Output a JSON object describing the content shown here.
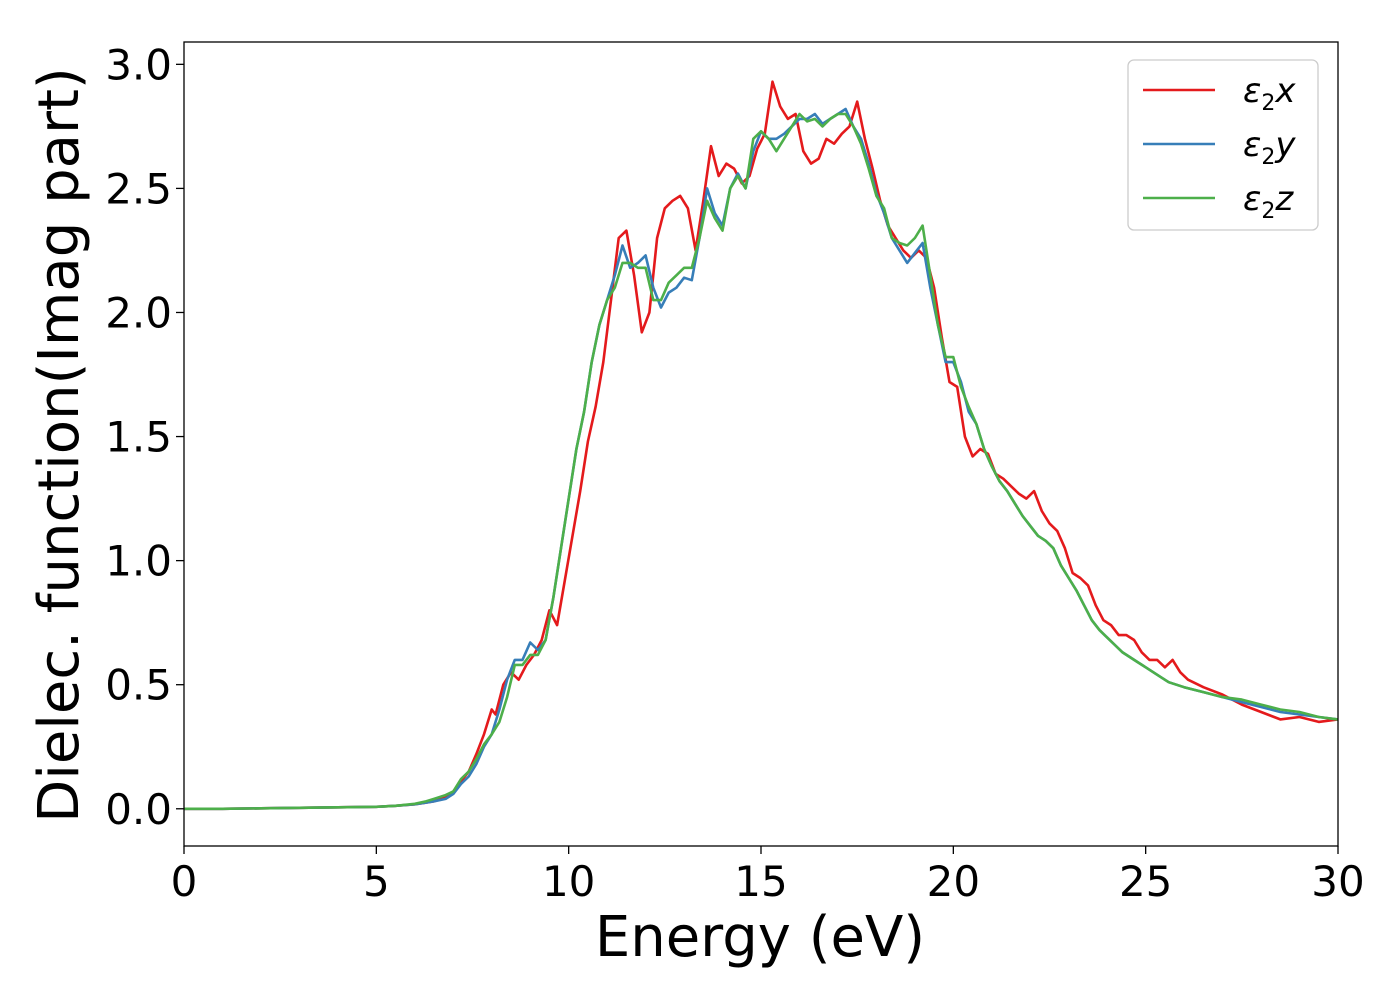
{
  "chart_data": {
    "type": "line",
    "xlabel": "Energy (eV)",
    "ylabel": "Dielec. function(Imag part)",
    "xlim": [
      0,
      30
    ],
    "ylim": [
      -0.15,
      3.09
    ],
    "xticks": [
      0,
      5,
      10,
      15,
      20,
      25,
      30
    ],
    "xtick_labels": [
      "0",
      "5",
      "10",
      "15",
      "20",
      "25",
      "30"
    ],
    "yticks": [
      0.0,
      0.5,
      1.0,
      1.5,
      2.0,
      2.5,
      3.0
    ],
    "ytick_labels": [
      "0.0",
      "0.5",
      "1.0",
      "1.5",
      "2.0",
      "2.5",
      "3.0"
    ],
    "grid": false,
    "legend_position": "top-right",
    "series": [
      {
        "name": "ε2x",
        "name_base": "ε",
        "name_sub": "2",
        "name_suffix": "x",
        "color": "#e41a1c",
        "x": [
          0,
          1,
          2,
          3,
          4,
          5,
          5.5,
          6,
          6.3,
          6.5,
          6.8,
          7.0,
          7.2,
          7.4,
          7.6,
          7.8,
          8.0,
          8.1,
          8.3,
          8.5,
          8.7,
          8.9,
          9.1,
          9.3,
          9.5,
          9.7,
          9.9,
          10.1,
          10.3,
          10.5,
          10.7,
          10.9,
          11.1,
          11.3,
          11.5,
          11.7,
          11.9,
          12.1,
          12.3,
          12.5,
          12.7,
          12.9,
          13.1,
          13.3,
          13.5,
          13.7,
          13.9,
          14.1,
          14.3,
          14.5,
          14.7,
          14.9,
          15.1,
          15.3,
          15.5,
          15.7,
          15.9,
          16.1,
          16.3,
          16.5,
          16.7,
          16.9,
          17.1,
          17.3,
          17.5,
          17.7,
          17.9,
          18.1,
          18.3,
          18.5,
          18.7,
          18.9,
          19.1,
          19.3,
          19.5,
          19.7,
          19.9,
          20.1,
          20.3,
          20.5,
          20.7,
          20.9,
          21.1,
          21.3,
          21.5,
          21.7,
          21.9,
          22.1,
          22.3,
          22.5,
          22.7,
          22.9,
          23.1,
          23.3,
          23.5,
          23.7,
          23.9,
          24.1,
          24.3,
          24.5,
          24.7,
          24.9,
          25.1,
          25.3,
          25.5,
          25.7,
          25.9,
          26.1,
          26.5,
          27.0,
          27.5,
          28.0,
          28.5,
          29.0,
          29.5,
          30.0
        ],
        "y": [
          0.0,
          0.0,
          0.002,
          0.004,
          0.006,
          0.008,
          0.012,
          0.018,
          0.025,
          0.03,
          0.045,
          0.07,
          0.11,
          0.15,
          0.22,
          0.3,
          0.4,
          0.38,
          0.5,
          0.55,
          0.52,
          0.58,
          0.62,
          0.68,
          0.8,
          0.74,
          0.92,
          1.1,
          1.28,
          1.48,
          1.62,
          1.8,
          2.05,
          2.3,
          2.33,
          2.15,
          1.92,
          2.0,
          2.3,
          2.42,
          2.45,
          2.47,
          2.42,
          2.25,
          2.45,
          2.67,
          2.55,
          2.6,
          2.58,
          2.52,
          2.55,
          2.66,
          2.72,
          2.93,
          2.83,
          2.78,
          2.8,
          2.65,
          2.6,
          2.62,
          2.7,
          2.68,
          2.72,
          2.75,
          2.85,
          2.7,
          2.58,
          2.45,
          2.35,
          2.3,
          2.25,
          2.22,
          2.25,
          2.22,
          2.1,
          1.9,
          1.72,
          1.7,
          1.5,
          1.42,
          1.45,
          1.43,
          1.35,
          1.33,
          1.3,
          1.27,
          1.25,
          1.28,
          1.2,
          1.15,
          1.12,
          1.05,
          0.95,
          0.93,
          0.9,
          0.82,
          0.76,
          0.74,
          0.7,
          0.7,
          0.68,
          0.63,
          0.6,
          0.6,
          0.57,
          0.6,
          0.55,
          0.52,
          0.49,
          0.46,
          0.42,
          0.39,
          0.36,
          0.37,
          0.35,
          0.36
        ]
      },
      {
        "name": "ε2y",
        "name_base": "ε",
        "name_sub": "2",
        "name_suffix": "y",
        "color": "#377eb8",
        "x": [
          0,
          1,
          2,
          3,
          4,
          5,
          5.5,
          6,
          6.3,
          6.5,
          6.8,
          7.0,
          7.2,
          7.4,
          7.6,
          7.8,
          8.0,
          8.2,
          8.4,
          8.6,
          8.8,
          9.0,
          9.2,
          9.4,
          9.6,
          9.8,
          10.0,
          10.2,
          10.4,
          10.6,
          10.8,
          11.0,
          11.2,
          11.4,
          11.6,
          11.8,
          12.0,
          12.2,
          12.4,
          12.6,
          12.8,
          13.0,
          13.2,
          13.4,
          13.6,
          13.8,
          14.0,
          14.2,
          14.4,
          14.6,
          14.8,
          15.0,
          15.2,
          15.4,
          15.6,
          15.8,
          16.0,
          16.2,
          16.4,
          16.6,
          16.8,
          17.0,
          17.2,
          17.4,
          17.6,
          17.8,
          18.0,
          18.2,
          18.4,
          18.6,
          18.8,
          19.0,
          19.2,
          19.4,
          19.6,
          19.8,
          20.0,
          20.2,
          20.4,
          20.6,
          20.8,
          21.0,
          21.2,
          21.4,
          21.6,
          21.8,
          22.0,
          22.2,
          22.4,
          22.6,
          22.8,
          23.0,
          23.2,
          23.4,
          23.6,
          23.8,
          24.0,
          24.2,
          24.4,
          24.6,
          24.8,
          25.0,
          25.2,
          25.4,
          25.6,
          25.8,
          26.0,
          26.5,
          27.0,
          27.5,
          28.0,
          28.5,
          29.0,
          29.5,
          30.0
        ],
        "y": [
          0.0,
          0.0,
          0.002,
          0.004,
          0.006,
          0.008,
          0.012,
          0.018,
          0.025,
          0.03,
          0.04,
          0.06,
          0.1,
          0.13,
          0.18,
          0.25,
          0.3,
          0.4,
          0.52,
          0.6,
          0.6,
          0.67,
          0.64,
          0.68,
          0.85,
          1.05,
          1.25,
          1.45,
          1.6,
          1.8,
          1.95,
          2.05,
          2.15,
          2.27,
          2.18,
          2.2,
          2.23,
          2.1,
          2.02,
          2.08,
          2.1,
          2.14,
          2.13,
          2.3,
          2.5,
          2.4,
          2.35,
          2.5,
          2.56,
          2.5,
          2.65,
          2.73,
          2.7,
          2.7,
          2.72,
          2.75,
          2.78,
          2.78,
          2.8,
          2.76,
          2.78,
          2.8,
          2.82,
          2.75,
          2.7,
          2.6,
          2.48,
          2.4,
          2.3,
          2.25,
          2.2,
          2.24,
          2.28,
          2.1,
          1.95,
          1.8,
          1.8,
          1.72,
          1.6,
          1.55,
          1.45,
          1.38,
          1.32,
          1.28,
          1.23,
          1.18,
          1.14,
          1.1,
          1.08,
          1.05,
          0.98,
          0.93,
          0.88,
          0.82,
          0.76,
          0.72,
          0.69,
          0.66,
          0.63,
          0.61,
          0.59,
          0.57,
          0.55,
          0.53,
          0.51,
          0.5,
          0.49,
          0.47,
          0.45,
          0.43,
          0.41,
          0.39,
          0.38,
          0.37,
          0.36
        ]
      },
      {
        "name": "ε2z",
        "name_base": "ε",
        "name_sub": "2",
        "name_suffix": "z",
        "color": "#4daf4a",
        "x": [
          0,
          1,
          2,
          3,
          4,
          5,
          5.5,
          6,
          6.3,
          6.5,
          6.8,
          7.0,
          7.2,
          7.4,
          7.6,
          7.8,
          8.0,
          8.2,
          8.4,
          8.6,
          8.8,
          9.0,
          9.2,
          9.4,
          9.6,
          9.8,
          10.0,
          10.2,
          10.4,
          10.6,
          10.8,
          11.0,
          11.2,
          11.4,
          11.6,
          11.8,
          12.0,
          12.2,
          12.4,
          12.6,
          12.8,
          13.0,
          13.2,
          13.4,
          13.6,
          13.8,
          14.0,
          14.2,
          14.4,
          14.6,
          14.8,
          15.0,
          15.2,
          15.4,
          15.6,
          15.8,
          16.0,
          16.2,
          16.4,
          16.6,
          16.8,
          17.0,
          17.2,
          17.4,
          17.6,
          17.8,
          18.0,
          18.2,
          18.4,
          18.6,
          18.8,
          19.0,
          19.2,
          19.4,
          19.6,
          19.8,
          20.0,
          20.2,
          20.4,
          20.6,
          20.8,
          21.0,
          21.2,
          21.4,
          21.6,
          21.8,
          22.0,
          22.2,
          22.4,
          22.6,
          22.8,
          23.0,
          23.2,
          23.4,
          23.6,
          23.8,
          24.0,
          24.2,
          24.4,
          24.6,
          24.8,
          25.0,
          25.2,
          25.4,
          25.6,
          25.8,
          26.0,
          26.5,
          27.0,
          27.5,
          28.0,
          28.5,
          29.0,
          29.5,
          30.0
        ],
        "y": [
          0.0,
          0.0,
          0.002,
          0.004,
          0.006,
          0.008,
          0.012,
          0.02,
          0.03,
          0.04,
          0.055,
          0.07,
          0.12,
          0.15,
          0.2,
          0.26,
          0.3,
          0.35,
          0.45,
          0.58,
          0.58,
          0.62,
          0.62,
          0.68,
          0.85,
          1.05,
          1.25,
          1.45,
          1.6,
          1.8,
          1.95,
          2.05,
          2.1,
          2.2,
          2.2,
          2.18,
          2.18,
          2.05,
          2.05,
          2.12,
          2.15,
          2.18,
          2.18,
          2.3,
          2.45,
          2.38,
          2.33,
          2.5,
          2.55,
          2.5,
          2.7,
          2.73,
          2.7,
          2.65,
          2.7,
          2.75,
          2.8,
          2.77,
          2.78,
          2.75,
          2.78,
          2.8,
          2.8,
          2.75,
          2.68,
          2.58,
          2.47,
          2.42,
          2.3,
          2.28,
          2.27,
          2.3,
          2.35,
          2.15,
          1.95,
          1.82,
          1.82,
          1.7,
          1.62,
          1.55,
          1.45,
          1.38,
          1.32,
          1.28,
          1.23,
          1.18,
          1.14,
          1.1,
          1.08,
          1.05,
          0.98,
          0.93,
          0.88,
          0.82,
          0.76,
          0.72,
          0.69,
          0.66,
          0.63,
          0.61,
          0.59,
          0.57,
          0.55,
          0.53,
          0.51,
          0.5,
          0.49,
          0.47,
          0.45,
          0.44,
          0.42,
          0.4,
          0.39,
          0.37,
          0.36
        ]
      }
    ]
  }
}
